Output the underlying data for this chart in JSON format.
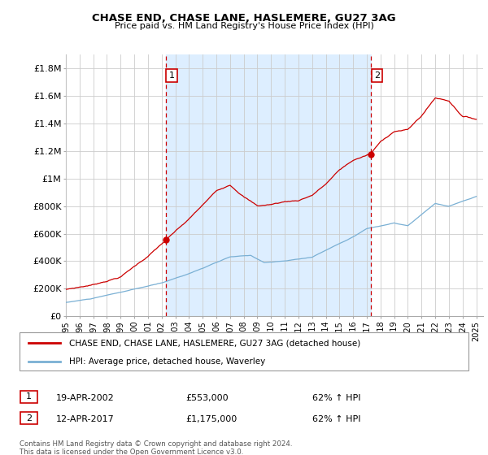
{
  "title": "CHASE END, CHASE LANE, HASLEMERE, GU27 3AG",
  "subtitle": "Price paid vs. HM Land Registry's House Price Index (HPI)",
  "sale1_date": 2002.29,
  "sale1_price": 553000,
  "sale1_label": "1",
  "sale1_display": "19-APR-2002",
  "sale1_amount": "£553,000",
  "sale1_hpi": "62% ↑ HPI",
  "sale2_date": 2017.28,
  "sale2_price": 1175000,
  "sale2_label": "2",
  "sale2_display": "12-APR-2017",
  "sale2_amount": "£1,175,000",
  "sale2_hpi": "62% ↑ HPI",
  "ylabel_ticks": [
    0,
    200000,
    400000,
    600000,
    800000,
    1000000,
    1200000,
    1400000,
    1600000,
    1800000
  ],
  "ylabel_labels": [
    "£0",
    "£200K",
    "£400K",
    "£600K",
    "£800K",
    "£1M",
    "£1.2M",
    "£1.4M",
    "£1.6M",
    "£1.8M"
  ],
  "ylim": [
    0,
    1900000
  ],
  "xlim_start": 1995.0,
  "xlim_end": 2025.5,
  "red_color": "#cc0000",
  "blue_color": "#7ab0d4",
  "shade_color": "#ddeeff",
  "grid_color": "#cccccc",
  "vline_color": "#cc0000",
  "legend_label_red": "CHASE END, CHASE LANE, HASLEMERE, GU27 3AG (detached house)",
  "legend_label_blue": "HPI: Average price, detached house, Waverley",
  "footer": "Contains HM Land Registry data © Crown copyright and database right 2024.\nThis data is licensed under the Open Government Licence v3.0.",
  "xticks": [
    1995,
    1996,
    1997,
    1998,
    1999,
    2000,
    2001,
    2002,
    2003,
    2004,
    2005,
    2006,
    2007,
    2008,
    2009,
    2010,
    2011,
    2012,
    2013,
    2014,
    2015,
    2016,
    2017,
    2018,
    2019,
    2020,
    2021,
    2022,
    2023,
    2024,
    2025
  ]
}
